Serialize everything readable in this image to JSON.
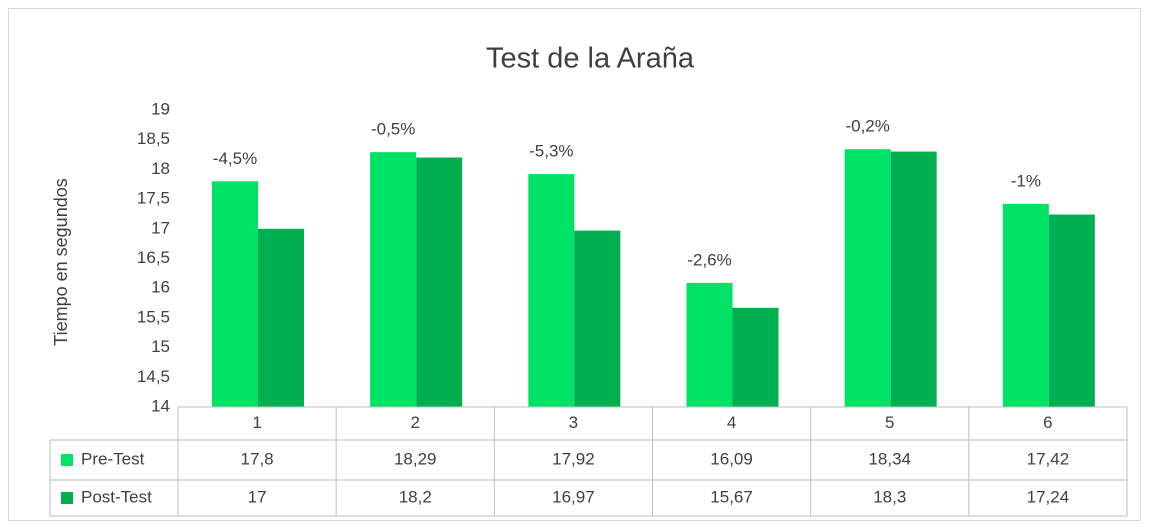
{
  "chart_data": {
    "type": "bar",
    "title": "Test de la Araña",
    "y_label": "Tiempo en segundos",
    "categories": [
      "1",
      "2",
      "3",
      "4",
      "5",
      "6"
    ],
    "series": [
      {
        "name": "Pre-Test",
        "color": "#00e266",
        "values": [
          17.8,
          18.29,
          17.92,
          16.09,
          18.34,
          17.42
        ],
        "value_labels": [
          "17,8",
          "18,29",
          "17,92",
          "16,09",
          "18,34",
          "17,42"
        ]
      },
      {
        "name": "Post-Test",
        "color": "#00b050",
        "values": [
          17,
          18.2,
          16.97,
          15.67,
          18.3,
          17.24
        ],
        "value_labels": [
          "17",
          "18,2",
          "16,97",
          "15,67",
          "18,3",
          "17,24"
        ]
      }
    ],
    "annotations": [
      "-4,5%",
      "-0,5%",
      "-5,3%",
      "-2,6%",
      "-0,2%",
      "-1%"
    ],
    "ylim": [
      14,
      19
    ],
    "yticks": [
      14,
      {
        "value": 14.5,
        "label": "14,5"
      },
      15,
      {
        "value": 15.5,
        "label": "15,5"
      },
      16,
      {
        "value": 16.5,
        "label": "16,5"
      },
      17,
      {
        "value": 17.5,
        "label": "17,5"
      },
      18,
      {
        "value": 18.5,
        "label": "18,5"
      },
      19
    ],
    "grid": false
  }
}
